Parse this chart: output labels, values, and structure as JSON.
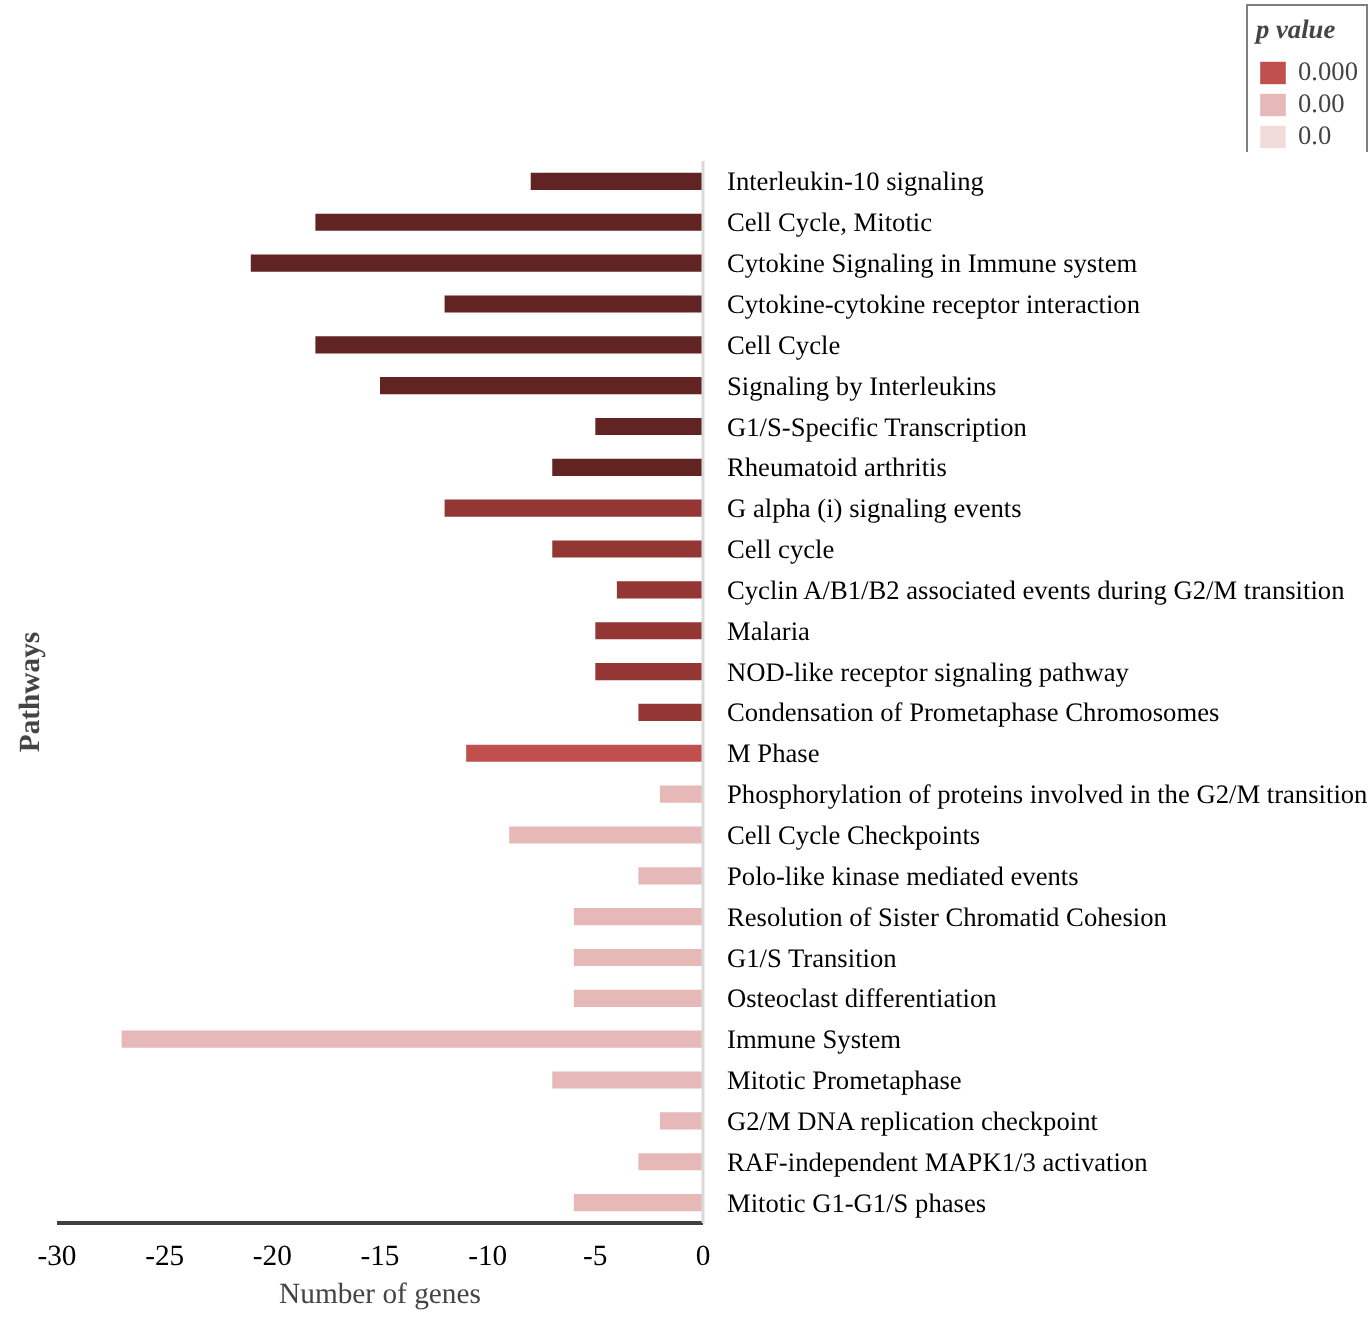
{
  "chart_data": {
    "type": "bar",
    "orientation": "horizontal",
    "ylabel": "Pathways",
    "xlabel": "Number of genes",
    "legend_title": "p value",
    "legend": "top right",
    "grid": false,
    "categories": [
      "Interleukin-10 signaling",
      "Cell Cycle, Mitotic",
      "Cytokine Signaling in Immune system",
      "Cytokine-cytokine receptor interaction",
      "Cell Cycle",
      "Signaling by Interleukins",
      "G1/S-Specific Transcription",
      "Rheumatoid arthritis",
      "G alpha (i) signaling events",
      "Cell cycle",
      "Cyclin A/B1/B2 associated events during G2/M transition",
      "Malaria",
      "NOD-like receptor signaling pathway",
      "Condensation of Prometaphase Chromosomes",
      "M Phase",
      "Phosphorylation of proteins involved in the G2/M transition",
      "Cell Cycle Checkpoints",
      "Polo-like kinase mediated events",
      "Resolution of Sister Chromatid Cohesion",
      "G1/S Transition",
      "Osteoclast differentiation",
      "Immune System",
      "Mitotic Prometaphase",
      "G2/M DNA replication checkpoint",
      "RAF-independent MAPK1/3 activation",
      "Mitotic G1-G1/S phases"
    ],
    "series": [
      {
        "color": "#622423",
        "values": [
          -8,
          -18,
          -21,
          -12,
          -18,
          -15,
          -5,
          -7,
          null,
          null,
          null,
          null,
          null,
          null,
          null,
          null,
          null,
          null,
          null,
          null,
          null,
          null,
          null,
          null,
          null,
          null
        ]
      },
      {
        "color": "#943634",
        "values": [
          null,
          null,
          null,
          null,
          null,
          null,
          null,
          null,
          -12,
          -7,
          -4,
          -5,
          -5,
          -3,
          null,
          null,
          null,
          null,
          null,
          null,
          null,
          null,
          null,
          null,
          null,
          null
        ]
      },
      {
        "name": "0.000",
        "color": "#c0504d",
        "values": [
          null,
          null,
          null,
          null,
          null,
          null,
          null,
          null,
          null,
          null,
          null,
          null,
          null,
          null,
          -11,
          null,
          null,
          null,
          null,
          null,
          null,
          null,
          null,
          null,
          null,
          null
        ]
      },
      {
        "name": "0.00",
        "color": "#e6b9b8",
        "values": [
          null,
          null,
          null,
          null,
          null,
          null,
          null,
          null,
          null,
          null,
          null,
          null,
          null,
          null,
          null,
          -2,
          -9,
          -3,
          -6,
          -6,
          -6,
          -27,
          -7,
          -2,
          -3,
          -6
        ]
      },
      {
        "name": "0.0",
        "color": "#f2dcdb",
        "values": [
          null,
          null,
          null,
          null,
          null,
          null,
          null,
          null,
          null,
          null,
          null,
          null,
          null,
          null,
          null,
          null,
          null,
          null,
          null,
          null,
          null,
          null,
          null,
          null,
          null,
          null
        ]
      }
    ],
    "xlim": [
      -30,
      0
    ],
    "xticks": [
      -30,
      -25,
      -20,
      -15,
      -10,
      -5,
      0
    ]
  }
}
